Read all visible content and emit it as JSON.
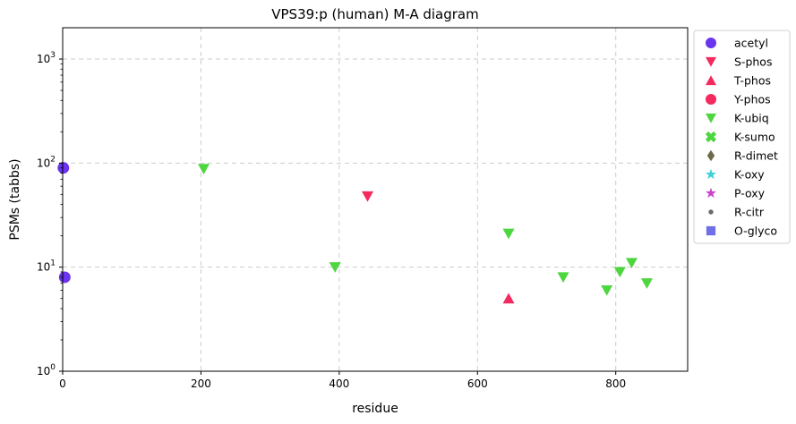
{
  "chart_data": {
    "type": "scatter",
    "title": "VPS39:p (human) M-A diagram",
    "xlabel": "residue",
    "ylabel": "PSMs (tabbs)",
    "xlim": [
      0,
      904
    ],
    "ylim": [
      1,
      2000
    ],
    "yscale": "log",
    "grid": true,
    "legend_position": "outside-right",
    "x_ticks": [
      0,
      200,
      400,
      600,
      800
    ],
    "y_ticks": [
      {
        "value": 1,
        "base": "10",
        "exp": "0"
      },
      {
        "value": 10,
        "base": "10",
        "exp": "1"
      },
      {
        "value": 100,
        "base": "10",
        "exp": "2"
      },
      {
        "value": 1000,
        "base": "10",
        "exp": "3"
      }
    ],
    "series": [
      {
        "name": "acetyl",
        "marker": "circle",
        "color": "#6a35ee",
        "points": [
          [
            1,
            90
          ],
          [
            3,
            8
          ]
        ]
      },
      {
        "name": "S-phos",
        "marker": "triangle-down",
        "color": "#f42a5e",
        "points": [
          [
            441,
            48
          ]
        ]
      },
      {
        "name": "T-phos",
        "marker": "triangle-up",
        "color": "#f42a5e",
        "points": [
          [
            645,
            5
          ]
        ]
      },
      {
        "name": "Y-phos",
        "marker": "circle",
        "color": "#f42a5e",
        "points": []
      },
      {
        "name": "K-ubiq",
        "marker": "triangle-down",
        "color": "#4dd63f",
        "points": [
          [
            204,
            88
          ],
          [
            394,
            10
          ],
          [
            645,
            21
          ],
          [
            724,
            8
          ],
          [
            787,
            6
          ],
          [
            806,
            9
          ],
          [
            823,
            11
          ],
          [
            845,
            7
          ]
        ]
      },
      {
        "name": "K-sumo",
        "marker": "x",
        "color": "#4dd63f",
        "points": []
      },
      {
        "name": "R-dimet",
        "marker": "diamond",
        "color": "#6b6b4a",
        "points": []
      },
      {
        "name": "K-oxy",
        "marker": "star",
        "color": "#3fd0d6",
        "points": []
      },
      {
        "name": "P-oxy",
        "marker": "star",
        "color": "#c845cc",
        "points": []
      },
      {
        "name": "R-citr",
        "marker": "dot",
        "color": "#6b6b6b",
        "points": []
      },
      {
        "name": "O-glyco",
        "marker": "square",
        "color": "#7070e6",
        "points": []
      }
    ]
  }
}
